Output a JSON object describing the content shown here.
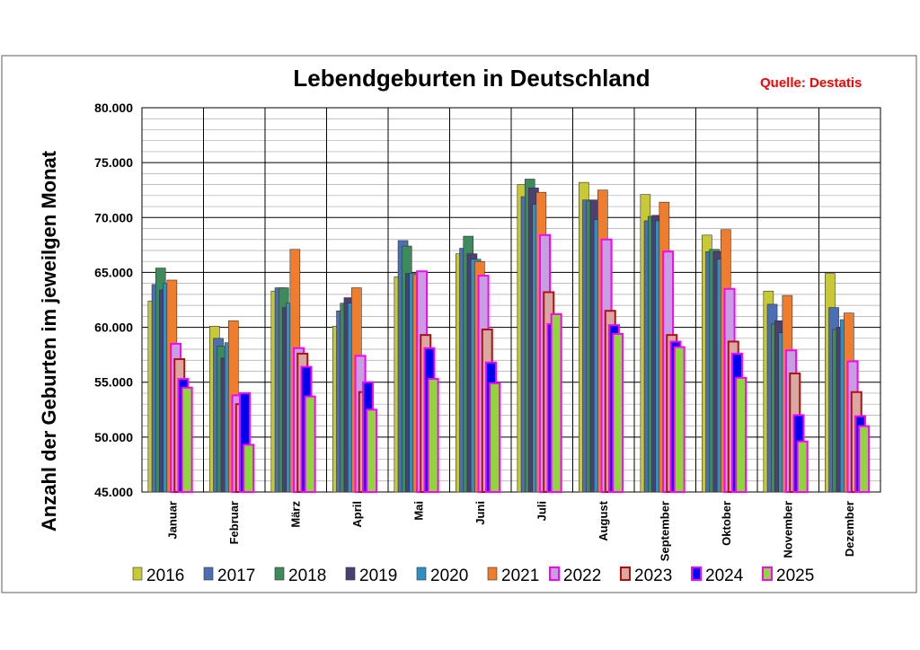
{
  "chart_data": {
    "type": "bar",
    "title": "Lebendgeburten in Deutschland",
    "source": "Quelle: Destatis",
    "xlabel": "",
    "ylabel": "Anzahl der Geburten im jeweilgen Monat",
    "ylim": [
      45000,
      80000
    ],
    "y_ticks": [
      "45.000",
      "50.000",
      "55.000",
      "60.000",
      "65.000",
      "70.000",
      "75.000",
      "80.000"
    ],
    "grid": true,
    "legend_position": "bottom",
    "categories": [
      "Januar",
      "Februar",
      "März",
      "April",
      "Mai",
      "Juni",
      "Juli",
      "August",
      "September",
      "Oktober",
      "November",
      "Dezember"
    ],
    "series": [
      {
        "name": "2016",
        "color": "#c9c935",
        "values": [
          62400,
          60100,
          63300,
          60100,
          64600,
          66700,
          73000,
          73200,
          72100,
          68400,
          63300,
          64900
        ]
      },
      {
        "name": "2017",
        "color": "#4a6fb5",
        "values": [
          63900,
          59000,
          63600,
          61500,
          67900,
          67200,
          71900,
          71600,
          69700,
          66900,
          62100,
          61800
        ]
      },
      {
        "name": "2018",
        "color": "#3d8a5c",
        "values": [
          65400,
          58300,
          63600,
          62200,
          67400,
          68300,
          73500,
          71500,
          70100,
          67100,
          60300,
          59800
        ]
      },
      {
        "name": "2019",
        "color": "#4b3f73",
        "values": [
          63400,
          57200,
          61800,
          62700,
          64900,
          66700,
          72700,
          71600,
          70200,
          66900,
          60600,
          60000
        ]
      },
      {
        "name": "2020",
        "color": "#2f8fc0",
        "values": [
          64000,
          58600,
          62200,
          62200,
          64900,
          66200,
          71200,
          69800,
          69700,
          66200,
          59500,
          60700
        ]
      },
      {
        "name": "2021",
        "color": "#f07d2e",
        "values": [
          64300,
          60600,
          67100,
          63600,
          64800,
          66000,
          72300,
          72500,
          71400,
          68900,
          62900,
          61300
        ]
      },
      {
        "name": "2022",
        "color": "#c4a0e0",
        "values": [
          58500,
          53800,
          58100,
          57400,
          65100,
          64700,
          68400,
          68000,
          66900,
          63500,
          57900,
          56900
        ]
      },
      {
        "name": "2023",
        "color": "#d9a8a0",
        "values": [
          57100,
          53000,
          57600,
          54100,
          59300,
          59800,
          63200,
          61500,
          59300,
          58700,
          55800,
          54100
        ]
      },
      {
        "name": "2024",
        "color": "#0000ee",
        "values": [
          55300,
          54000,
          56400,
          55000,
          58100,
          56800,
          60300,
          60200,
          58700,
          57600,
          52000,
          51900
        ]
      },
      {
        "name": "2025",
        "color": "#8ed63b",
        "values": [
          54500,
          49300,
          53700,
          52500,
          55300,
          54900,
          61200,
          59400,
          58200,
          55400,
          49600,
          51000
        ]
      }
    ],
    "legend": [
      "2016",
      "2017",
      "2018",
      "2019",
      "2020",
      "2021",
      "2022",
      "2023",
      "2024",
      "2025"
    ]
  }
}
